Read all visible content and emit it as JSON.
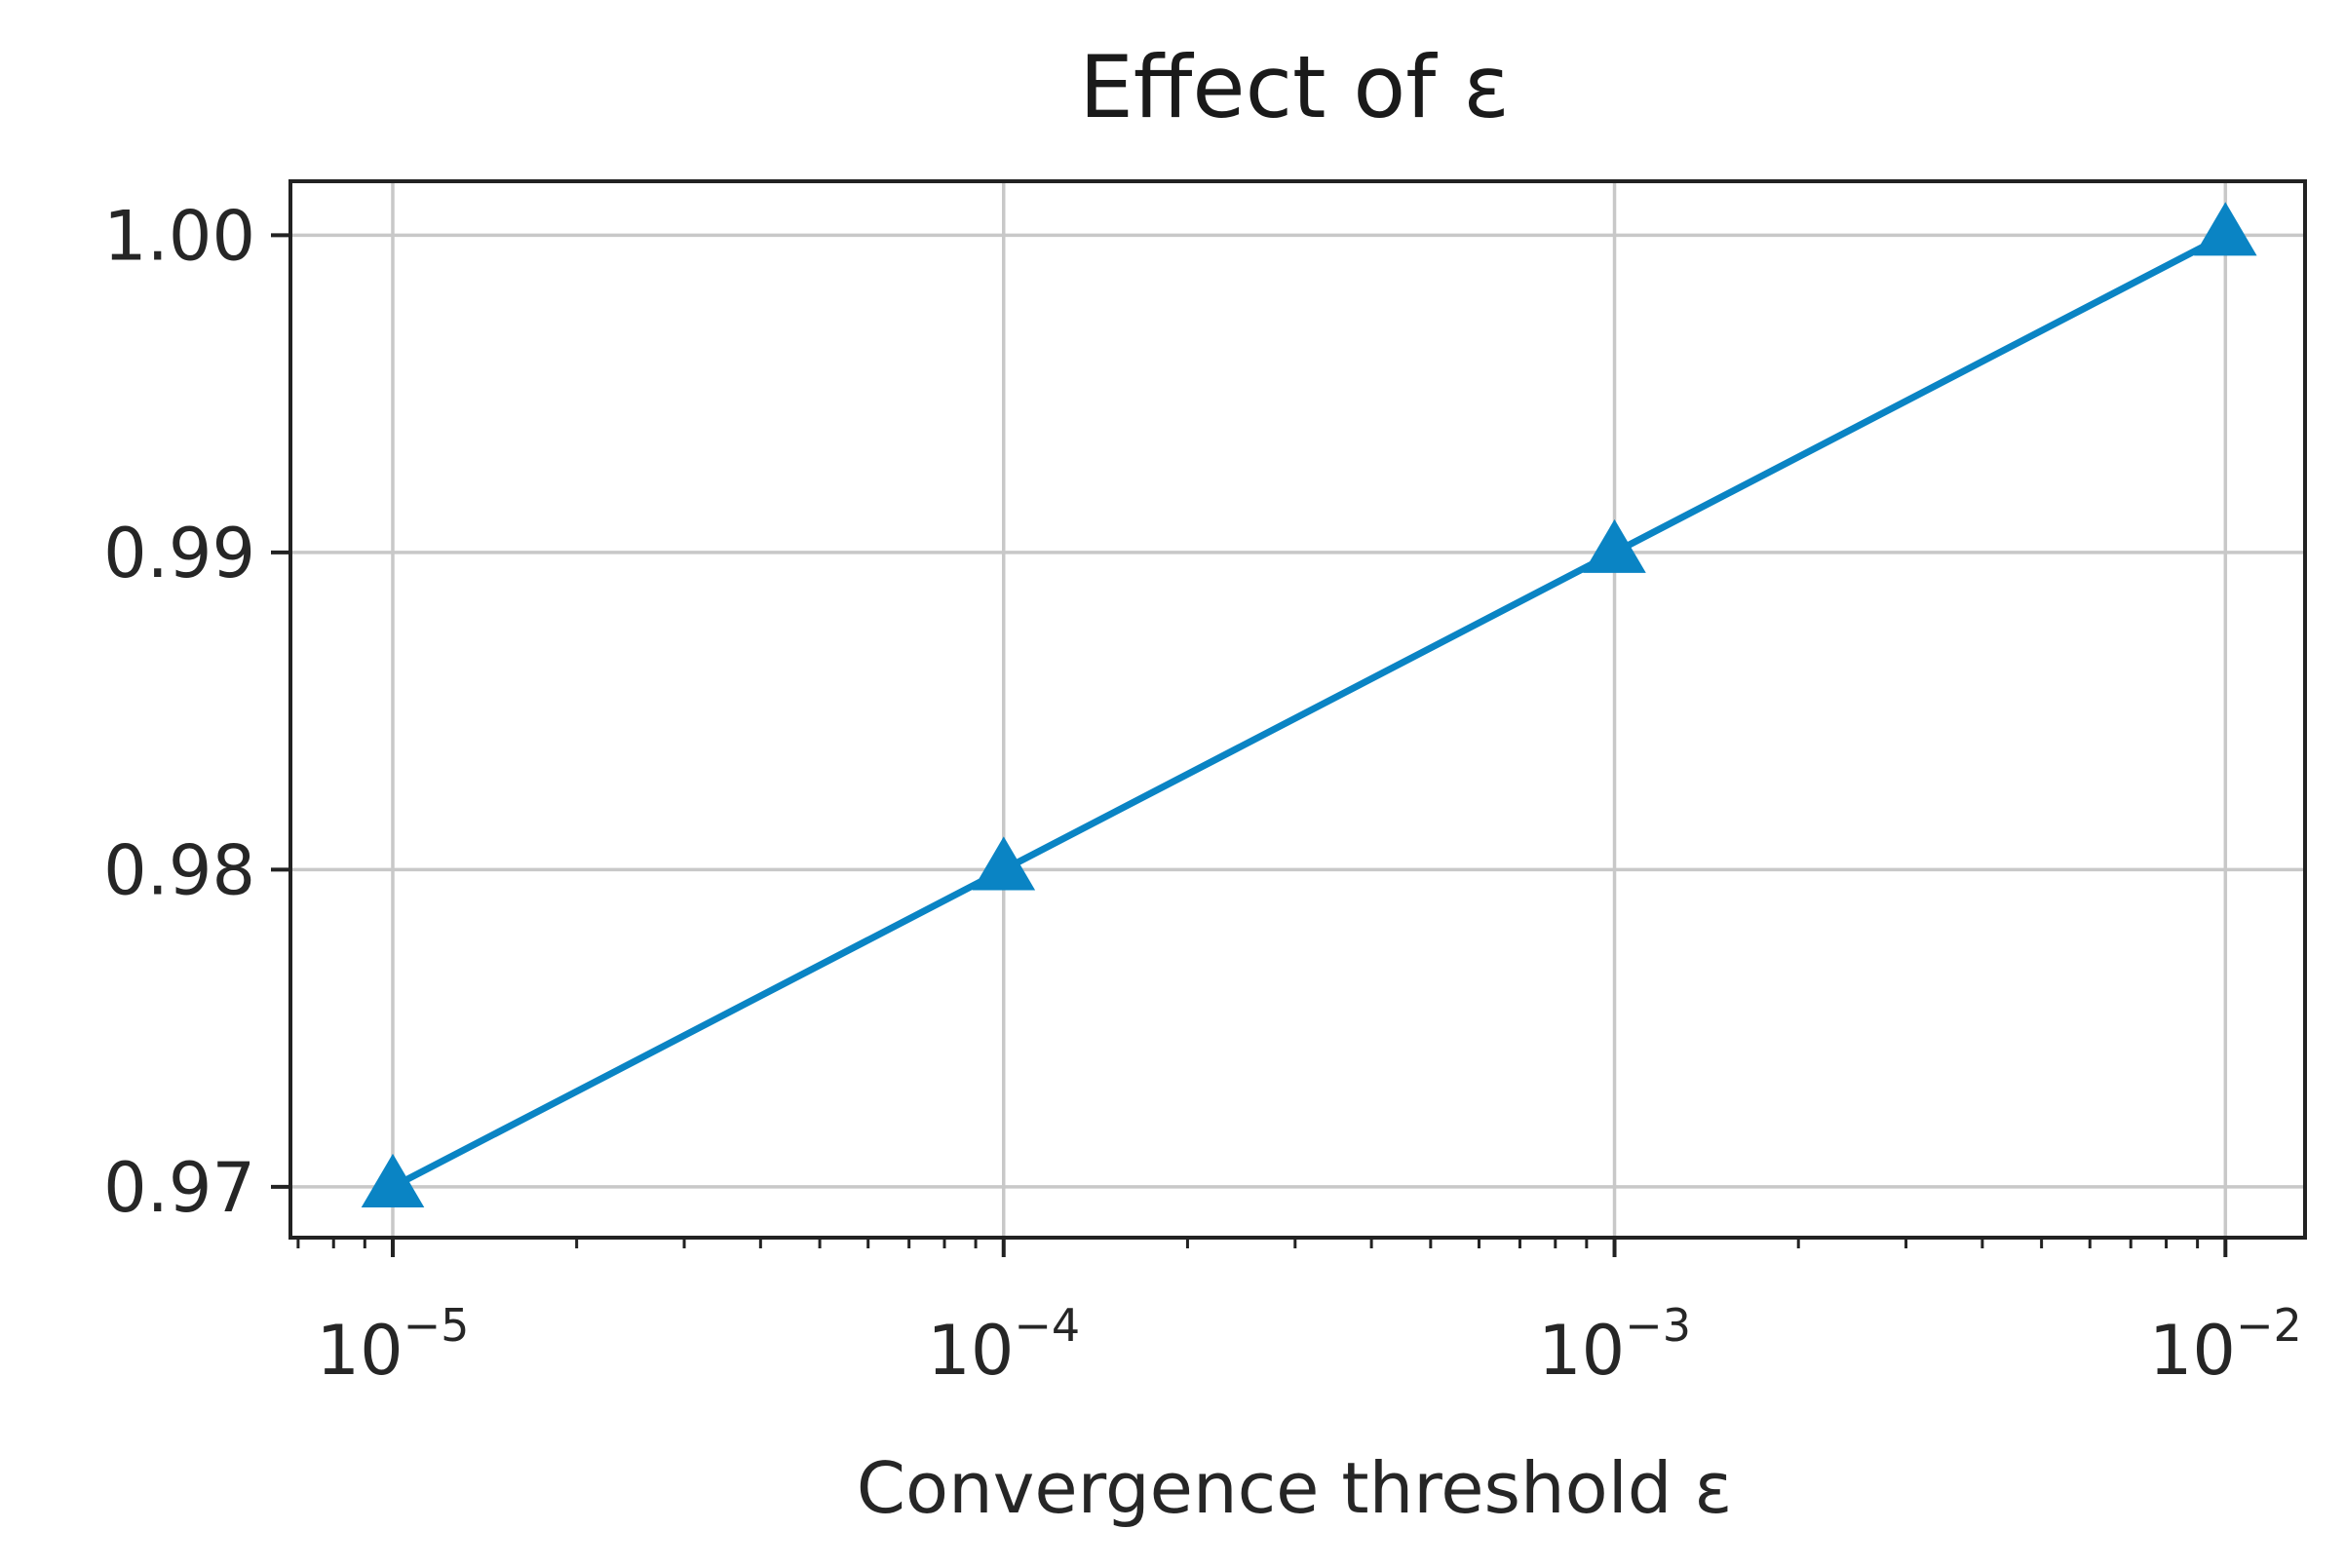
{
  "chart_data": {
    "type": "line",
    "title": "Effect of ε",
    "xlabel": "Convergence threshold ε",
    "ylabel": "",
    "xscale": "log",
    "xlim": [
      6.8e-06,
      0.0135
    ],
    "ylim": [
      0.9684,
      1.0017
    ],
    "grid": true,
    "legend": "none",
    "x_ticks": [
      {
        "value": 1e-05,
        "base": "10",
        "exp": "−5"
      },
      {
        "value": 0.0001,
        "base": "10",
        "exp": "−4"
      },
      {
        "value": 0.001,
        "base": "10",
        "exp": "−3"
      },
      {
        "value": 0.01,
        "base": "10",
        "exp": "−2"
      }
    ],
    "y_ticks": [
      {
        "value": 0.97,
        "label": "0.97"
      },
      {
        "value": 0.98,
        "label": "0.98"
      },
      {
        "value": 0.99,
        "label": "0.99"
      },
      {
        "value": 1.0,
        "label": "1.00"
      }
    ],
    "series": [
      {
        "color": "#0a84c4",
        "marker": "triangle-up",
        "x": [
          1e-05,
          0.0001,
          0.001,
          0.01
        ],
        "y": [
          0.97,
          0.98,
          0.99,
          1.0
        ]
      }
    ]
  }
}
